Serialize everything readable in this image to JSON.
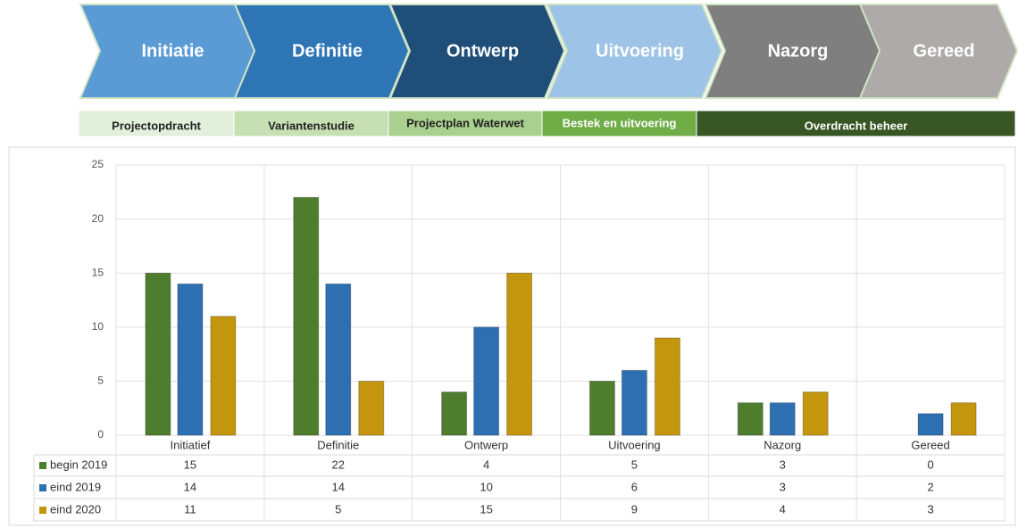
{
  "phases": [
    "Initiatie",
    "Definitie",
    "Ontwerp",
    "Uitvoering",
    "Nazorg",
    "Gereed"
  ],
  "stages": [
    "Projectopdracht",
    "Variantenstudie",
    "Projectplan Waterwet",
    "Bestek en uitvoering",
    "Overdracht beheer"
  ],
  "chart_data": {
    "type": "bar",
    "categories": [
      "Initiatief",
      "Definitie",
      "Ontwerp",
      "Uitvoering",
      "Nazorg",
      "Gereed"
    ],
    "series": [
      {
        "name": "begin 2019",
        "color": "#4e7d2e",
        "values": [
          15,
          22,
          4,
          5,
          3,
          0
        ]
      },
      {
        "name": "eind 2019",
        "color": "#2e6fb2",
        "values": [
          14,
          14,
          10,
          6,
          3,
          2
        ]
      },
      {
        "name": "eind 2020",
        "color": "#c4960e",
        "values": [
          11,
          5,
          15,
          9,
          4,
          3
        ]
      }
    ],
    "ylim": [
      0,
      25
    ],
    "yticks": [
      0,
      5,
      10,
      15,
      20,
      25
    ],
    "grid": true,
    "data_table": true
  }
}
